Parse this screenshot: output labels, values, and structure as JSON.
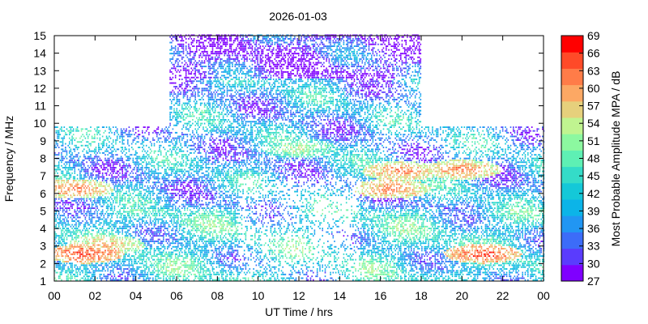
{
  "chart_data": {
    "type": "heatmap",
    "title": "2026-01-03",
    "xlabel": "UT Time / hrs",
    "ylabel": "Frequency / MHz",
    "xlim": [
      0,
      24
    ],
    "ylim": [
      1,
      15
    ],
    "x_ticks": [
      "00",
      "02",
      "04",
      "06",
      "08",
      "10",
      "12",
      "14",
      "16",
      "18",
      "20",
      "22",
      "00"
    ],
    "y_ticks": [
      "1",
      "2",
      "3",
      "4",
      "5",
      "6",
      "7",
      "8",
      "9",
      "10",
      "11",
      "12",
      "13",
      "14",
      "15"
    ],
    "colorbar": {
      "label": "Most Probable Amplitude MPA / dB",
      "range": [
        27,
        69
      ],
      "ticks": [
        "27",
        "30",
        "33",
        "36",
        "39",
        "42",
        "45",
        "48",
        "51",
        "54",
        "57",
        "60",
        "63",
        "66",
        "69"
      ],
      "colors": [
        "#7f00ff",
        "#5a3cfd",
        "#3c6cf8",
        "#2196f3",
        "#0cb4e8",
        "#14c8d8",
        "#34dcc8",
        "#5ef0b4",
        "#8cf8a0",
        "#c0f490",
        "#e6d07c",
        "#fca864",
        "#ff7c48",
        "#ff4a28",
        "#ff0000"
      ]
    },
    "frequency_envelope_mhz": [
      {
        "ut_start": 0.0,
        "ut_end": 5.6,
        "max_freq": 9.8
      },
      {
        "ut_start": 5.6,
        "ut_end": 18.0,
        "max_freq": 15.0
      },
      {
        "ut_start": 18.0,
        "ut_end": 24.0,
        "max_freq": 9.8
      }
    ],
    "notable_features": [
      {
        "ut": 1.5,
        "freq": 2.5,
        "mpa": 66
      },
      {
        "ut": 1.0,
        "freq": 6.2,
        "mpa": 63
      },
      {
        "ut": 2.5,
        "freq": 3.0,
        "mpa": 60
      },
      {
        "ut": 17.0,
        "freq": 7.2,
        "mpa": 63
      },
      {
        "ut": 16.5,
        "freq": 6.2,
        "mpa": 63
      },
      {
        "ut": 20.0,
        "freq": 7.3,
        "mpa": 63
      },
      {
        "ut": 21.0,
        "freq": 2.5,
        "mpa": 66
      },
      {
        "ut": 12.0,
        "freq": 8.5,
        "mpa": 54
      },
      {
        "ut": 6.0,
        "freq": 14.0,
        "mpa": 27
      },
      {
        "ut": 17.5,
        "freq": 14.0,
        "mpa": 27
      }
    ]
  }
}
